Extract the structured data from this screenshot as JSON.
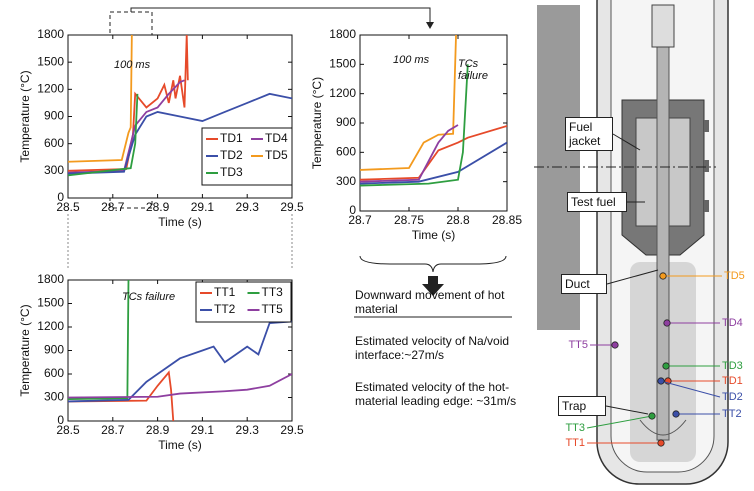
{
  "chart_data": [
    {
      "type": "line",
      "x_label": "Time (s)",
      "y_label": "Temperature (°C)",
      "xlim": [
        28.5,
        29.5
      ],
      "xticks": [
        28.5,
        28.7,
        28.9,
        29.1,
        29.3,
        29.5
      ],
      "ylim": [
        0,
        1800
      ],
      "yticks": [
        0,
        300,
        600,
        900,
        1200,
        1500,
        1800
      ],
      "legend": "lower right",
      "annotations": [
        "100 ms"
      ],
      "series": [
        {
          "name": "TD1",
          "color": "#e64a2a",
          "x": [
            28.5,
            28.76,
            28.79,
            28.8,
            28.85,
            28.9,
            28.93,
            28.95,
            28.97,
            28.98,
            29.0,
            29.02,
            29.03,
            29.035
          ],
          "values": [
            300,
            320,
            700,
            1150,
            1000,
            1100,
            1250,
            1050,
            1300,
            1100,
            1350,
            1000,
            1800,
            1300
          ]
        },
        {
          "name": "TD4",
          "color": "#8e3fa0",
          "x": [
            28.5,
            28.75,
            28.8,
            28.85,
            28.9,
            28.95,
            29.0,
            29.02
          ],
          "values": [
            280,
            300,
            800,
            950,
            1000,
            1150,
            1280,
            1300
          ]
        },
        {
          "name": "TD2",
          "color": "#3b4fa8",
          "x": [
            28.5,
            28.75,
            28.8,
            28.85,
            28.9,
            29.0,
            29.1,
            29.2,
            29.3,
            29.4,
            29.5
          ],
          "values": [
            270,
            290,
            700,
            900,
            950,
            900,
            850,
            950,
            1050,
            1150,
            1100
          ]
        },
        {
          "name": "TD5",
          "color": "#f39a1e",
          "x": [
            28.5,
            28.74,
            28.77,
            28.78,
            28.785
          ],
          "values": [
            400,
            420,
            720,
            780,
            1800
          ]
        },
        {
          "name": "TD3",
          "color": "#2e9e40",
          "x": [
            28.5,
            28.78,
            28.8,
            28.81
          ],
          "values": [
            250,
            330,
            600,
            1150
          ]
        }
      ]
    },
    {
      "type": "line",
      "x_label": "Time (s)",
      "y_label": "Temperature (°C)",
      "xlim": [
        28.7,
        28.85
      ],
      "xticks": [
        28.7,
        28.75,
        28.8,
        28.85
      ],
      "ylim": [
        0,
        1800
      ],
      "yticks": [
        0,
        300,
        600,
        900,
        1200,
        1500,
        1800
      ],
      "annotations": [
        "100 ms",
        "TCs failure"
      ],
      "series": [
        {
          "color": "#f39a1e",
          "x": [
            28.7,
            28.75,
            28.765,
            28.78,
            28.795,
            28.798
          ],
          "values": [
            420,
            440,
            700,
            780,
            790,
            1800
          ]
        },
        {
          "color": "#e64a2a",
          "x": [
            28.7,
            28.76,
            28.78,
            28.8,
            28.81,
            28.85
          ],
          "values": [
            320,
            340,
            620,
            700,
            750,
            870
          ]
        },
        {
          "color": "#8e3fa0",
          "x": [
            28.7,
            28.76,
            28.78,
            28.79,
            28.8
          ],
          "values": [
            300,
            320,
            700,
            820,
            880
          ]
        },
        {
          "color": "#3b4fa8",
          "x": [
            28.7,
            28.76,
            28.8,
            28.85
          ],
          "values": [
            280,
            300,
            400,
            700
          ]
        },
        {
          "color": "#2e9e40",
          "x": [
            28.7,
            28.77,
            28.8,
            28.805,
            28.81
          ],
          "values": [
            260,
            280,
            320,
            600,
            1500
          ]
        }
      ]
    },
    {
      "type": "line",
      "x_label": "Time (s)",
      "y_label": "Temperature (°C)",
      "xlim": [
        28.5,
        29.5
      ],
      "xticks": [
        28.5,
        28.7,
        28.9,
        29.1,
        29.3,
        29.5
      ],
      "ylim": [
        0,
        1800
      ],
      "yticks": [
        0,
        300,
        600,
        900,
        1200,
        1500,
        1800
      ],
      "legend": "upper right",
      "annotations": [
        "TCs failure"
      ],
      "series": [
        {
          "name": "TT1",
          "color": "#e64a2a",
          "x": [
            28.5,
            28.85,
            28.9,
            28.95,
            28.96,
            28.97
          ],
          "values": [
            250,
            260,
            450,
            620,
            400,
            0
          ]
        },
        {
          "name": "TT3",
          "color": "#2e9e40",
          "x": [
            28.5,
            28.765,
            28.77
          ],
          "values": [
            280,
            290,
            1800
          ]
        },
        {
          "name": "TT2",
          "color": "#3b4fa8",
          "x": [
            28.5,
            28.77,
            28.85,
            28.9,
            29.0,
            29.1,
            29.15,
            29.2,
            29.3,
            29.35,
            29.4,
            29.5
          ],
          "values": [
            250,
            270,
            500,
            600,
            800,
            900,
            950,
            750,
            950,
            850,
            1250,
            1270
          ]
        },
        {
          "name": "TT5",
          "color": "#8e3fa0",
          "x": [
            28.5,
            28.9,
            29.0,
            29.2,
            29.3,
            29.4,
            29.5
          ],
          "values": [
            300,
            310,
            350,
            380,
            400,
            450,
            600
          ]
        }
      ]
    }
  ],
  "notes": {
    "heading": "Downward movement of hot material",
    "lines": [
      "Estimated velocity of Na/void interface:~27m/s",
      "Estimated velocity of the hot-material leading edge: ~31m/s"
    ]
  },
  "diagram": {
    "boxes": [
      "Fuel jacket",
      "Test fuel",
      "Duct",
      "Trap"
    ],
    "sensors": [
      "TD5",
      "TD4",
      "TT5",
      "TD3",
      "TD1",
      "TD2",
      "TT2",
      "TT3",
      "TT1"
    ]
  }
}
